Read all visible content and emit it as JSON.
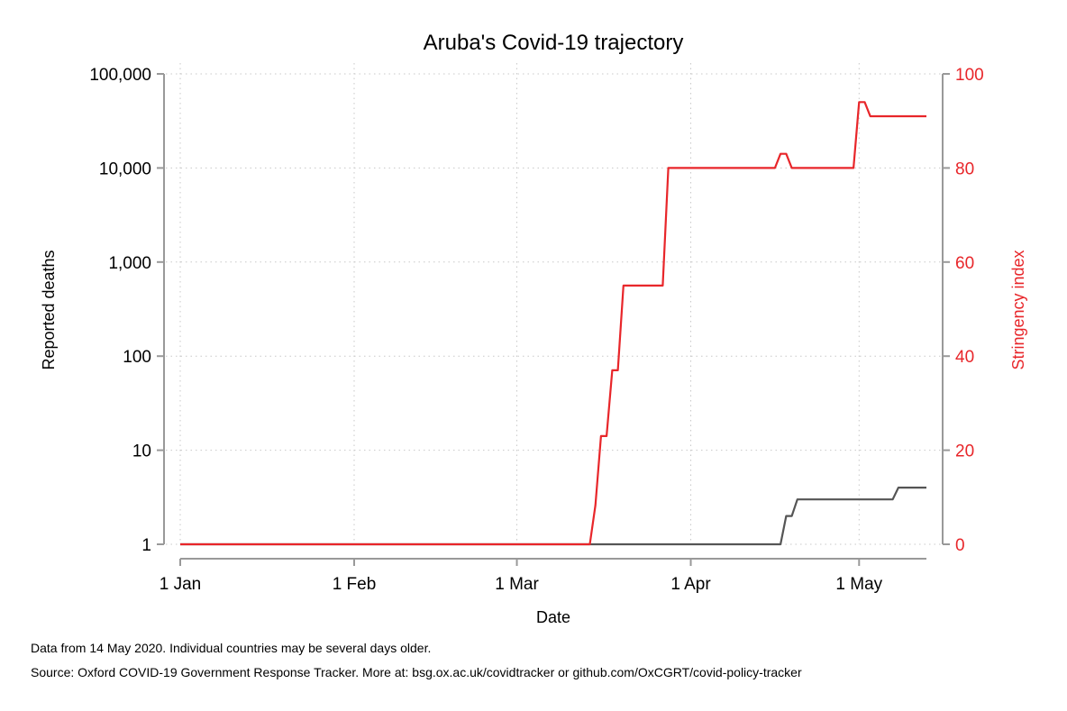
{
  "chart_data": {
    "type": "line",
    "title": "Aruba's Covid-19 trajectory",
    "xlabel": "Date",
    "ylabel_left": "Reported deaths",
    "ylabel_right": "Stringency index",
    "x_tick_labels": [
      "1 Jan",
      "1 Feb",
      "1 Mar",
      "1 Apr",
      "1 May"
    ],
    "x_tick_dates": [
      "2020-01-01",
      "2020-02-01",
      "2020-03-01",
      "2020-04-01",
      "2020-05-01"
    ],
    "xlim": [
      "2020-01-01",
      "2020-05-13"
    ],
    "y_left": {
      "scale": "log",
      "ylim": [
        1,
        100000
      ],
      "ticks": [
        1,
        10,
        100,
        1000,
        10000,
        100000
      ],
      "tick_labels": [
        "1",
        "10",
        "100",
        "1,000",
        "10,000",
        "100,000"
      ]
    },
    "y_right": {
      "scale": "linear",
      "ylim": [
        0,
        100
      ],
      "ticks": [
        0,
        20,
        40,
        60,
        80,
        100
      ],
      "tick_labels": [
        "0",
        "20",
        "40",
        "60",
        "80",
        "100"
      ],
      "color": "#e8262a"
    },
    "grid": true,
    "series": [
      {
        "axis": "left",
        "color": "#555555",
        "points": [
          [
            "2020-01-01",
            1
          ],
          [
            "2020-04-17",
            1
          ],
          [
            "2020-04-18",
            2
          ],
          [
            "2020-04-19",
            2
          ],
          [
            "2020-04-20",
            3
          ],
          [
            "2020-05-07",
            3
          ],
          [
            "2020-05-08",
            4
          ],
          [
            "2020-05-13",
            4
          ]
        ]
      },
      {
        "axis": "right",
        "color": "#e8262a",
        "points": [
          [
            "2020-01-01",
            0
          ],
          [
            "2020-03-14",
            0
          ],
          [
            "2020-03-15",
            8.3
          ],
          [
            "2020-03-16",
            23
          ],
          [
            "2020-03-17",
            23
          ],
          [
            "2020-03-18",
            37
          ],
          [
            "2020-03-19",
            37
          ],
          [
            "2020-03-20",
            55
          ],
          [
            "2020-03-27",
            55
          ],
          [
            "2020-03-28",
            80
          ],
          [
            "2020-04-16",
            80
          ],
          [
            "2020-04-17",
            83
          ],
          [
            "2020-04-18",
            83
          ],
          [
            "2020-04-19",
            80
          ],
          [
            "2020-04-30",
            80
          ],
          [
            "2020-05-01",
            94
          ],
          [
            "2020-05-02",
            94
          ],
          [
            "2020-05-03",
            91
          ],
          [
            "2020-05-13",
            91
          ]
        ]
      }
    ]
  },
  "footnotes": {
    "line1": "Data from 14 May 2020. Individual countries may be several days older.",
    "line2": "Source: Oxford COVID-19 Government Response Tracker. More at: bsg.ox.ac.uk/covidtracker or github.com/OxCGRT/covid-policy-tracker"
  }
}
